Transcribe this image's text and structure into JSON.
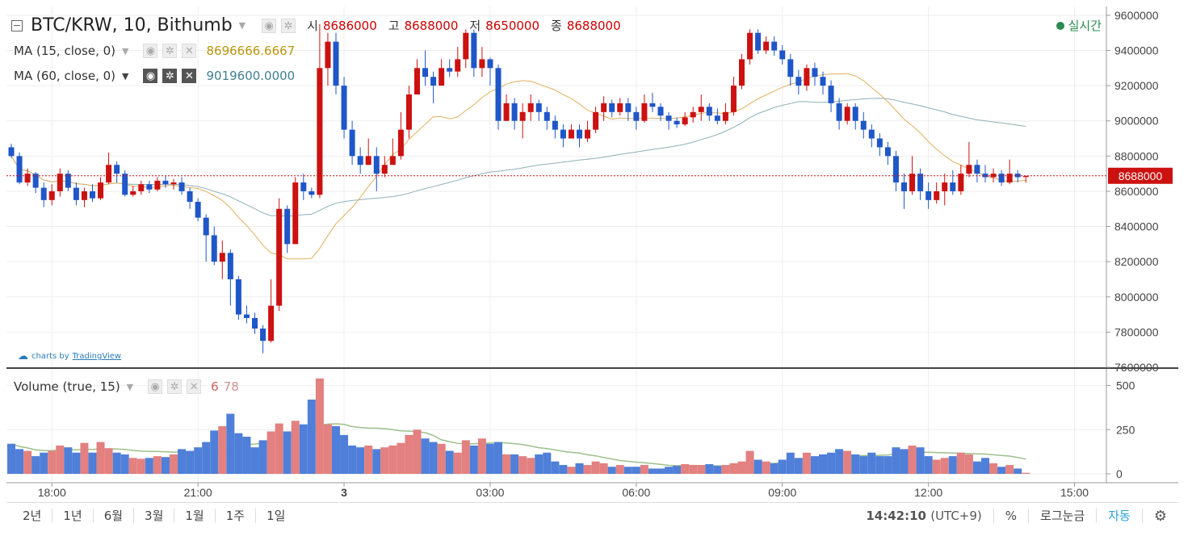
{
  "header": {
    "symbol_title": "BTC/KRW, 10, Bithumb",
    "ohlc": [
      {
        "label": "시",
        "value": "8686000"
      },
      {
        "label": "고",
        "value": "8688000"
      },
      {
        "label": "저",
        "value": "8650000"
      },
      {
        "label": "종",
        "value": "8688000"
      }
    ],
    "live_label": "실시간",
    "live_color": "#2a8a52"
  },
  "indicators": [
    {
      "label": "MA (15, close, 0)",
      "value": "8696666.6667",
      "color": "#b8960c"
    },
    {
      "label": "MA (60, close, 0)",
      "value": "9019600.0000",
      "color": "#3f7f8f"
    }
  ],
  "volume_legend": {
    "label": "Volume (true, 15)",
    "value1": "6",
    "value2": "78"
  },
  "tv_logo": {
    "prefix": "charts by",
    "brand": "TradingView"
  },
  "price_axis": {
    "ticks": [
      "9600000",
      "9400000",
      "9200000",
      "9000000",
      "8800000",
      "8600000",
      "8400000",
      "8200000",
      "8000000",
      "7800000",
      "7600000"
    ],
    "last_price": "8688000"
  },
  "volume_axis": {
    "ticks": [
      "500",
      "250",
      "0"
    ]
  },
  "time_axis": {
    "ticks": [
      "18:00",
      "21:00",
      "3",
      "03:00",
      "06:00",
      "09:00",
      "12:00",
      "15:00"
    ]
  },
  "bottom_bar": {
    "ranges": [
      "2년",
      "1년",
      "6월",
      "3월",
      "1월",
      "1주",
      "1일"
    ],
    "clock": "14:42:10",
    "timezone": "(UTC+9)",
    "percent": "%",
    "log": "로그눈금",
    "auto": "자동"
  },
  "colors": {
    "up": "#cc1111",
    "down": "#1f56c8",
    "vol_up": "#e38080",
    "vol_down": "#4f7fd8",
    "ma15": "#e0b060",
    "ma60": "#8fb0b8",
    "vol_ma": "#9dc08b",
    "last": "#cc1111"
  },
  "chart_data": {
    "type": "candlestick",
    "title": "BTC/KRW, 10, Bithumb",
    "ylim": [
      7600000,
      9650000
    ],
    "volume_ylim": [
      0,
      580
    ],
    "x_ticks": [
      {
        "label": "18:00",
        "index": 5
      },
      {
        "label": "21:00",
        "index": 23
      },
      {
        "label": "3",
        "index": 41
      },
      {
        "label": "03:00",
        "index": 59
      },
      {
        "label": "06:00",
        "index": 77
      },
      {
        "label": "09:00",
        "index": 95
      },
      {
        "label": "12:00",
        "index": 113
      },
      {
        "label": "15:00",
        "index": 131
      }
    ],
    "candles": [
      [
        8850000,
        8800000,
        8870000,
        8790000,
        170
      ],
      [
        8800000,
        8650000,
        8820000,
        8640000,
        140
      ],
      [
        8650000,
        8700000,
        8730000,
        8630000,
        130
      ],
      [
        8700000,
        8620000,
        8710000,
        8590000,
        100
      ],
      [
        8620000,
        8550000,
        8650000,
        8510000,
        120
      ],
      [
        8550000,
        8600000,
        8640000,
        8520000,
        130
      ],
      [
        8600000,
        8700000,
        8730000,
        8570000,
        160
      ],
      [
        8700000,
        8620000,
        8720000,
        8600000,
        150
      ],
      [
        8620000,
        8550000,
        8650000,
        8520000,
        120
      ],
      [
        8550000,
        8600000,
        8620000,
        8510000,
        175
      ],
      [
        8600000,
        8560000,
        8640000,
        8540000,
        120
      ],
      [
        8560000,
        8650000,
        8680000,
        8550000,
        180
      ],
      [
        8650000,
        8750000,
        8820000,
        8640000,
        145
      ],
      [
        8750000,
        8700000,
        8770000,
        8650000,
        120
      ],
      [
        8700000,
        8580000,
        8720000,
        8570000,
        110
      ],
      [
        8580000,
        8600000,
        8630000,
        8570000,
        90
      ],
      [
        8600000,
        8640000,
        8660000,
        8580000,
        85
      ],
      [
        8640000,
        8610000,
        8660000,
        8590000,
        90
      ],
      [
        8610000,
        8660000,
        8680000,
        8600000,
        100
      ],
      [
        8660000,
        8640000,
        8690000,
        8620000,
        95
      ],
      [
        8640000,
        8650000,
        8670000,
        8610000,
        110
      ],
      [
        8650000,
        8600000,
        8680000,
        8580000,
        140
      ],
      [
        8600000,
        8540000,
        8620000,
        8500000,
        130
      ],
      [
        8540000,
        8450000,
        8560000,
        8430000,
        150
      ],
      [
        8450000,
        8350000,
        8470000,
        8200000,
        180
      ],
      [
        8350000,
        8200000,
        8400000,
        8180000,
        245
      ],
      [
        8200000,
        8250000,
        8320000,
        8100000,
        270
      ],
      [
        8250000,
        8100000,
        8270000,
        7950000,
        340
      ],
      [
        8100000,
        7900000,
        8120000,
        7870000,
        230
      ],
      [
        7900000,
        7880000,
        7950000,
        7850000,
        210
      ],
      [
        7880000,
        7820000,
        7910000,
        7790000,
        150
      ],
      [
        7820000,
        7750000,
        7840000,
        7680000,
        190
      ],
      [
        7750000,
        7950000,
        8100000,
        7740000,
        240
      ],
      [
        7950000,
        8500000,
        8560000,
        7920000,
        285
      ],
      [
        8500000,
        8300000,
        8520000,
        8250000,
        240
      ],
      [
        8300000,
        8650000,
        8680000,
        8300000,
        300
      ],
      [
        8650000,
        8600000,
        8700000,
        8550000,
        280
      ],
      [
        8600000,
        8580000,
        8620000,
        8560000,
        420
      ],
      [
        8580000,
        9300000,
        9550000,
        8560000,
        540
      ],
      [
        9300000,
        9450000,
        9500000,
        9200000,
        280
      ],
      [
        9450000,
        9200000,
        9500000,
        9150000,
        270
      ],
      [
        9200000,
        8950000,
        9250000,
        8900000,
        220
      ],
      [
        8950000,
        8800000,
        9000000,
        8750000,
        160
      ],
      [
        8800000,
        8750000,
        8850000,
        8700000,
        150
      ],
      [
        8750000,
        8800000,
        8900000,
        8750000,
        160
      ],
      [
        8800000,
        8700000,
        8850000,
        8600000,
        140
      ],
      [
        8700000,
        8750000,
        8800000,
        8680000,
        150
      ],
      [
        8750000,
        8800000,
        8900000,
        8750000,
        160
      ],
      [
        8800000,
        8950000,
        9050000,
        8780000,
        175
      ],
      [
        8950000,
        9150000,
        9200000,
        8900000,
        220
      ],
      [
        9150000,
        9300000,
        9350000,
        9150000,
        250
      ],
      [
        9300000,
        9250000,
        9400000,
        9200000,
        200
      ],
      [
        9250000,
        9200000,
        9280000,
        9100000,
        180
      ],
      [
        9200000,
        9300000,
        9350000,
        9200000,
        170
      ],
      [
        9300000,
        9280000,
        9350000,
        9250000,
        130
      ],
      [
        9280000,
        9350000,
        9420000,
        9250000,
        120
      ],
      [
        9350000,
        9500000,
        9520000,
        9300000,
        190
      ],
      [
        9500000,
        9300000,
        9520000,
        9250000,
        160
      ],
      [
        9300000,
        9350000,
        9420000,
        9250000,
        200
      ],
      [
        9350000,
        9300000,
        9360000,
        9200000,
        170
      ],
      [
        9300000,
        9000000,
        9320000,
        8950000,
        180
      ],
      [
        9000000,
        9100000,
        9150000,
        9000000,
        110
      ],
      [
        9100000,
        9000000,
        9130000,
        8950000,
        110
      ],
      [
        9000000,
        9050000,
        9100000,
        8900000,
        100
      ],
      [
        9050000,
        9100000,
        9150000,
        9000000,
        90
      ],
      [
        9100000,
        9050000,
        9120000,
        9000000,
        110
      ],
      [
        9050000,
        9000000,
        9080000,
        8950000,
        120
      ],
      [
        9000000,
        8950000,
        9030000,
        8900000,
        70
      ],
      [
        8950000,
        8900000,
        8980000,
        8850000,
        50
      ],
      [
        8900000,
        8950000,
        8980000,
        8900000,
        40
      ],
      [
        8950000,
        8900000,
        8980000,
        8850000,
        60
      ],
      [
        8900000,
        8950000,
        9000000,
        8880000,
        50
      ],
      [
        8950000,
        9050000,
        9080000,
        8930000,
        70
      ],
      [
        9050000,
        9100000,
        9140000,
        9000000,
        60
      ],
      [
        9100000,
        9050000,
        9120000,
        9020000,
        40
      ],
      [
        9050000,
        9100000,
        9130000,
        9030000,
        50
      ],
      [
        9100000,
        9050000,
        9130000,
        9000000,
        40
      ],
      [
        9050000,
        9000000,
        9080000,
        8950000,
        40
      ],
      [
        9000000,
        9100000,
        9150000,
        8990000,
        50
      ],
      [
        9100000,
        9080000,
        9160000,
        9050000,
        30
      ],
      [
        9080000,
        9030000,
        9100000,
        9000000,
        30
      ],
      [
        9030000,
        9000000,
        9050000,
        8950000,
        40
      ],
      [
        9000000,
        8980000,
        9020000,
        8960000,
        45
      ],
      [
        8980000,
        9020000,
        9050000,
        8970000,
        55
      ],
      [
        9020000,
        9050000,
        9080000,
        8990000,
        50
      ],
      [
        9050000,
        9080000,
        9150000,
        9000000,
        50
      ],
      [
        9080000,
        9030000,
        9100000,
        9000000,
        55
      ],
      [
        9030000,
        9000000,
        9070000,
        8980000,
        45
      ],
      [
        9000000,
        9050000,
        9100000,
        8980000,
        50
      ],
      [
        9050000,
        9200000,
        9250000,
        9030000,
        60
      ],
      [
        9200000,
        9350000,
        9380000,
        9180000,
        70
      ],
      [
        9350000,
        9500000,
        9520000,
        9320000,
        130
      ],
      [
        9500000,
        9400000,
        9520000,
        9380000,
        80
      ],
      [
        9400000,
        9450000,
        9480000,
        9380000,
        70
      ],
      [
        9450000,
        9400000,
        9480000,
        9370000,
        60
      ],
      [
        9400000,
        9350000,
        9430000,
        9320000,
        80
      ],
      [
        9350000,
        9250000,
        9380000,
        9200000,
        120
      ],
      [
        9250000,
        9200000,
        9290000,
        9150000,
        90
      ],
      [
        9200000,
        9300000,
        9320000,
        9170000,
        120
      ],
      [
        9300000,
        9250000,
        9330000,
        9200000,
        100
      ],
      [
        9250000,
        9200000,
        9280000,
        9150000,
        110
      ],
      [
        9200000,
        9100000,
        9230000,
        9050000,
        120
      ],
      [
        9100000,
        9000000,
        9130000,
        8950000,
        140
      ],
      [
        9000000,
        9080000,
        9100000,
        8980000,
        130
      ],
      [
        9080000,
        9000000,
        9100000,
        8950000,
        110
      ],
      [
        9000000,
        8950000,
        9050000,
        8900000,
        100
      ],
      [
        8950000,
        8900000,
        8980000,
        8850000,
        120
      ],
      [
        8900000,
        8850000,
        8930000,
        8800000,
        100
      ],
      [
        8850000,
        8800000,
        8880000,
        8750000,
        100
      ],
      [
        8800000,
        8650000,
        8830000,
        8600000,
        150
      ],
      [
        8650000,
        8600000,
        8700000,
        8500000,
        140
      ],
      [
        8600000,
        8700000,
        8800000,
        8580000,
        160
      ],
      [
        8700000,
        8600000,
        8730000,
        8550000,
        150
      ],
      [
        8600000,
        8550000,
        8650000,
        8500000,
        100
      ],
      [
        8550000,
        8600000,
        8650000,
        8530000,
        80
      ],
      [
        8600000,
        8650000,
        8700000,
        8520000,
        90
      ],
      [
        8650000,
        8600000,
        8720000,
        8580000,
        100
      ],
      [
        8600000,
        8700000,
        8750000,
        8580000,
        120
      ],
      [
        8700000,
        8750000,
        8880000,
        8680000,
        110
      ],
      [
        8750000,
        8700000,
        8780000,
        8650000,
        70
      ],
      [
        8700000,
        8680000,
        8750000,
        8650000,
        90
      ],
      [
        8680000,
        8700000,
        8730000,
        8650000,
        60
      ],
      [
        8700000,
        8650000,
        8720000,
        8630000,
        40
      ],
      [
        8650000,
        8700000,
        8780000,
        8640000,
        50
      ],
      [
        8700000,
        8680000,
        8720000,
        8650000,
        30
      ],
      [
        8686000,
        8688000,
        8688000,
        8650000,
        6
      ]
    ]
  }
}
